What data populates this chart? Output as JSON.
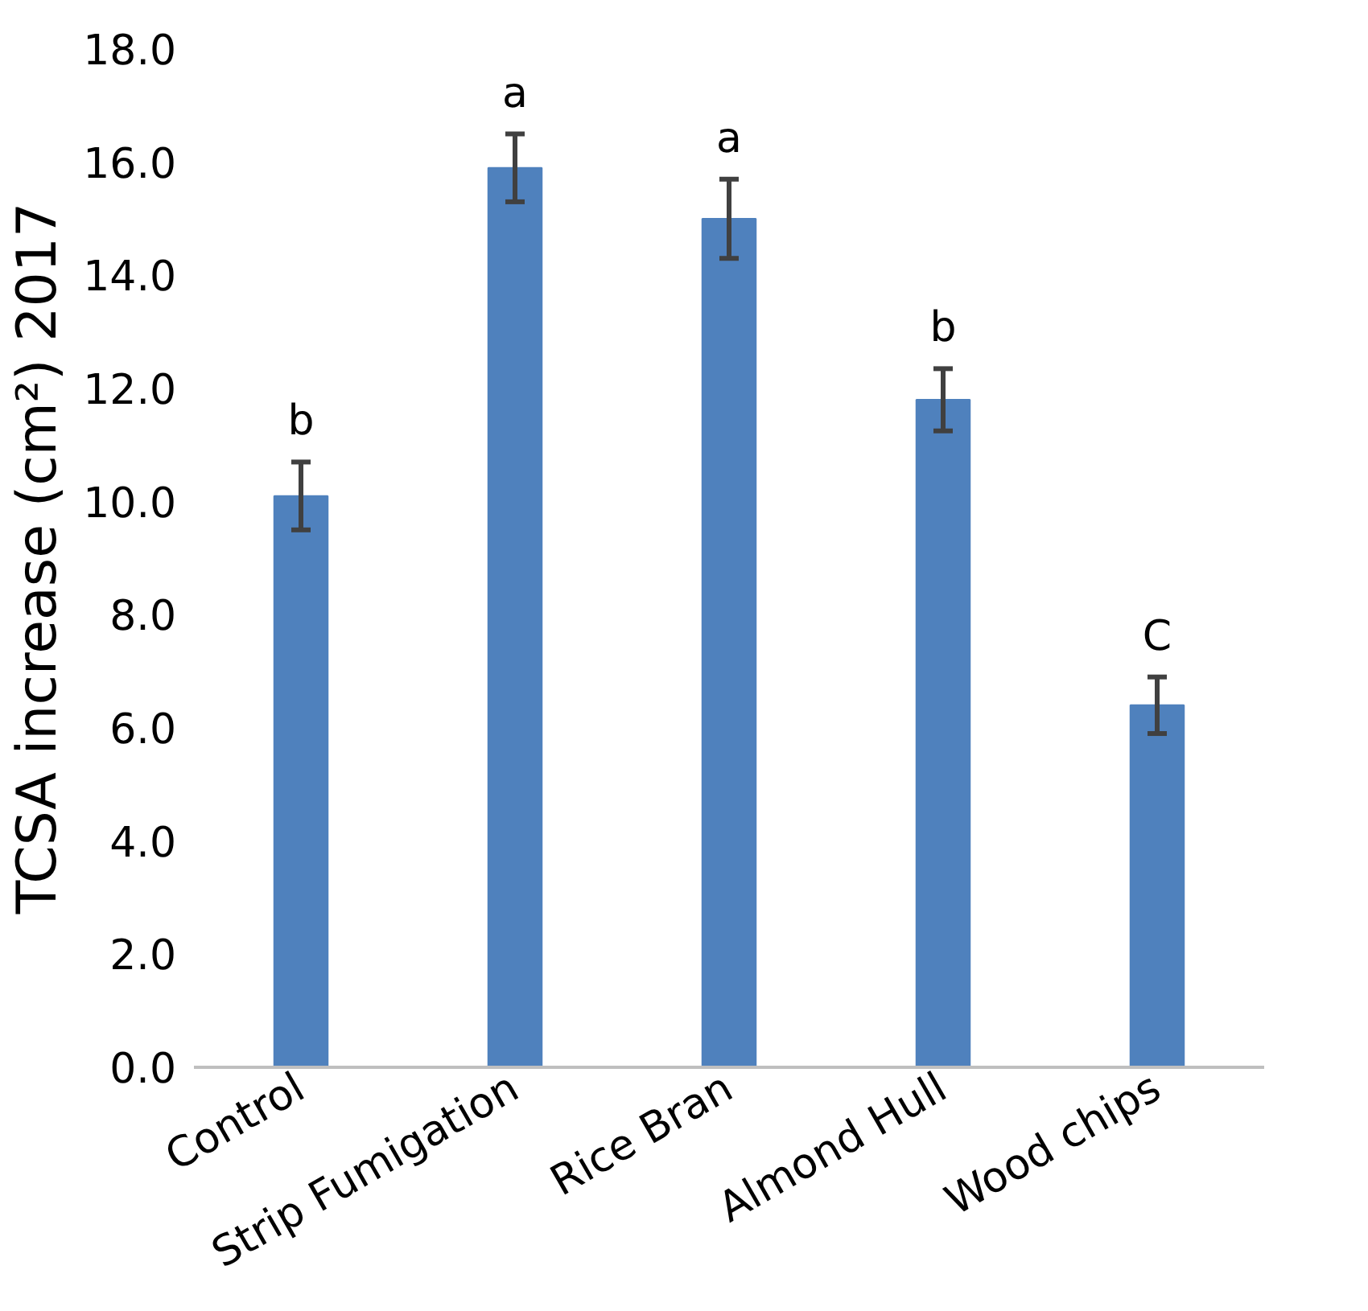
{
  "chart_data": {
    "type": "bar",
    "ylabel": "TCSA increase (cm²) 2017",
    "categories": [
      "Control",
      "Strip Fumigation",
      "Rice Bran",
      "Almond Hull",
      "Wood chips"
    ],
    "values": [
      10.1,
      15.9,
      15.0,
      11.8,
      6.4
    ],
    "errors": [
      0.6,
      0.6,
      0.7,
      0.55,
      0.5
    ],
    "color": "#4f81bd",
    "ylim": [
      0,
      18
    ],
    "yticks": [
      {
        "value": 0,
        "label": "0.0"
      },
      {
        "value": 2,
        "label": "2.0"
      },
      {
        "value": 4,
        "label": "4.0"
      },
      {
        "value": 6,
        "label": "6.0"
      },
      {
        "value": 8,
        "label": "8.0"
      },
      {
        "value": 10,
        "label": "10.0"
      },
      {
        "value": 12,
        "label": "12.0"
      },
      {
        "value": 14,
        "label": "14.0"
      },
      {
        "value": 16,
        "label": "16.0"
      },
      {
        "value": 18,
        "label": "18.0"
      }
    ],
    "grid": false,
    "annotations": [
      {
        "text": "b",
        "x": "Control",
        "y": 10.7
      },
      {
        "text": "a",
        "x": "Strip Fumigation",
        "y": 16.5
      },
      {
        "text": "a",
        "x": "Rice Bran",
        "y": 15.7
      },
      {
        "text": "b",
        "x": "Almond Hull",
        "y": 12.35
      },
      {
        "text": "C",
        "x": "Wood chips",
        "y": 6.9
      }
    ]
  }
}
